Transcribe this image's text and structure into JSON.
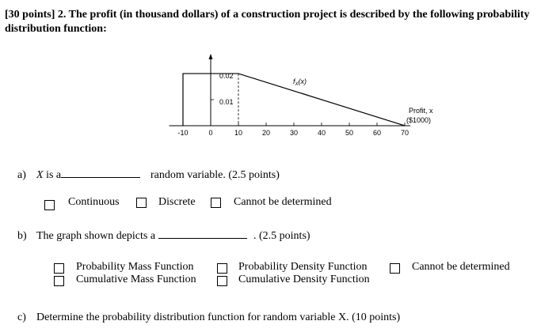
{
  "question": {
    "title": "[30 points] 2. The profit (in thousand dollars) of a construction project is described by the following probability distribution function:"
  },
  "chart_data": {
    "type": "line",
    "x": [
      -10,
      -10,
      10,
      70
    ],
    "values": [
      0,
      0.02,
      0.02,
      0
    ],
    "curve_label": [
      "f",
      "X",
      "(x)"
    ],
    "xlabel": [
      "Profit, x",
      "($1000)"
    ],
    "xlim": [
      -15,
      72
    ],
    "ylim": [
      0,
      0.027
    ],
    "xticks": [
      -10,
      0,
      10,
      20,
      30,
      40,
      50,
      60,
      70
    ],
    "yticks": [
      0.01,
      0.02
    ],
    "color": "#000000"
  },
  "part_a": {
    "label": "a)",
    "prompt_var": "X",
    "prompt": "is a",
    "suffix": "random variable. (2.5 points)",
    "options": [
      "Continuous",
      "Discrete",
      "Cannot be determined"
    ]
  },
  "part_b": {
    "label": "b)",
    "prompt": "The graph shown depicts a",
    "suffix": ". (2.5 points)",
    "options": [
      "Probability Mass Function",
      "Cumulative Mass Function",
      "Probability Density Function",
      "Cumulative Density Function",
      "Cannot be determined"
    ]
  },
  "part_c": {
    "label": "c)",
    "prompt": "Determine the probability distribution function for random variable X. (10 points)"
  }
}
